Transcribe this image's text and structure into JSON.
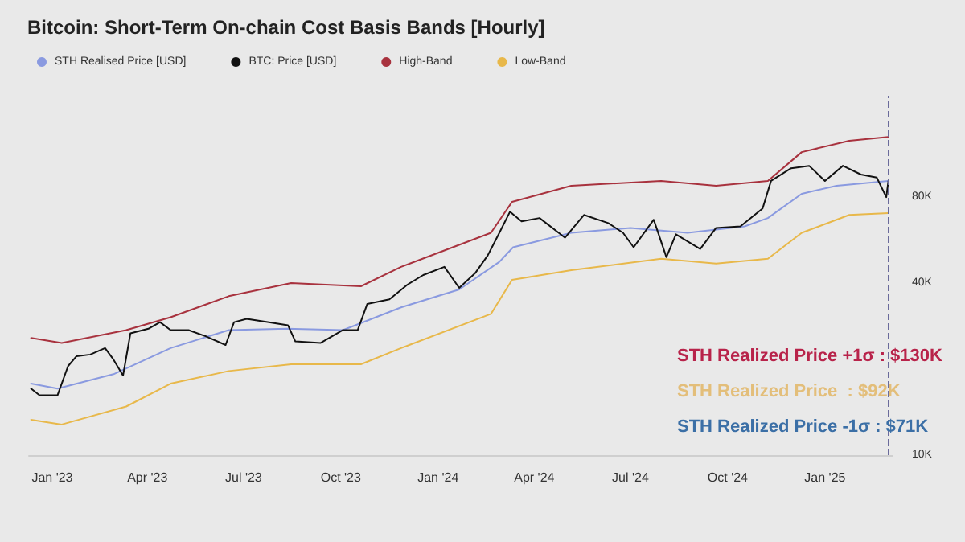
{
  "chart_data": {
    "type": "line",
    "title": "Bitcoin: Short-Term On-chain Cost Basis Bands [Hourly]",
    "series": [
      {
        "name": "STH Realised Price [USD]",
        "color": "#8a9ae0",
        "x": [
          "2022-12-12",
          "2023-01-06",
          "2023-02-28",
          "2023-04-23",
          "2023-06-17",
          "2023-08-11",
          "2023-10-03",
          "2023-11-27",
          "2024-01-21",
          "2024-02-28",
          "2024-03-12",
          "2024-05-06",
          "2024-07-01",
          "2024-08-24",
          "2024-10-17",
          "2024-11-08",
          "2024-12-10",
          "2025-01-12",
          "2025-03-02"
        ],
        "values": [
          17800,
          17100,
          19200,
          23700,
          27400,
          27700,
          27400,
          32900,
          38000,
          47500,
          53400,
          60000,
          62400,
          60000,
          63200,
          67600,
          82200,
          87700,
          91200
        ]
      },
      {
        "name": "BTC: Price [USD]",
        "color": "#111111",
        "x": [
          "2022-12-12",
          "2022-12-20",
          "2023-01-06",
          "2023-01-16",
          "2023-01-24",
          "2023-02-06",
          "2023-02-20",
          "2023-02-28",
          "2023-03-09",
          "2023-03-16",
          "2023-04-02",
          "2023-04-13",
          "2023-04-23",
          "2023-05-10",
          "2023-05-27",
          "2023-06-14",
          "2023-06-22",
          "2023-07-04",
          "2023-07-25",
          "2023-08-12",
          "2023-08-19",
          "2023-09-12",
          "2023-10-03",
          "2023-10-17",
          "2023-10-26",
          "2023-11-16",
          "2023-12-03",
          "2023-12-18",
          "2024-01-07",
          "2024-01-21",
          "2024-02-05",
          "2024-02-17",
          "2024-02-28",
          "2024-03-09",
          "2024-03-20",
          "2024-04-06",
          "2024-04-30",
          "2024-05-18",
          "2024-06-10",
          "2024-06-24",
          "2024-07-04",
          "2024-07-23",
          "2024-08-04",
          "2024-08-13",
          "2024-09-05",
          "2024-09-20",
          "2024-10-13",
          "2024-11-03",
          "2024-11-11",
          "2024-11-30",
          "2024-12-17",
          "2025-01-01",
          "2025-01-18",
          "2025-02-04",
          "2025-02-19",
          "2025-02-28",
          "2025-03-02"
        ],
        "values": [
          17100,
          16200,
          16200,
          20500,
          22200,
          22500,
          23700,
          21600,
          19000,
          26700,
          27700,
          29200,
          27400,
          27400,
          26000,
          24300,
          29200,
          30000,
          29200,
          28500,
          25000,
          24700,
          27400,
          27400,
          33800,
          35100,
          39500,
          42700,
          45600,
          38500,
          43300,
          50000,
          60000,
          71100,
          65800,
          67600,
          57700,
          69300,
          64900,
          60000,
          53400,
          66700,
          49300,
          59300,
          52700,
          62400,
          63200,
          73000,
          91200,
          101000,
          103000,
          91200,
          103000,
          96000,
          93700,
          80000,
          91200
        ]
      },
      {
        "name": "High-Band",
        "color": "#a8323e",
        "x": [
          "2022-12-12",
          "2023-01-10",
          "2023-03-12",
          "2023-04-23",
          "2023-06-17",
          "2023-08-15",
          "2023-10-20",
          "2023-11-27",
          "2024-02-20",
          "2024-03-11",
          "2024-05-06",
          "2024-07-30",
          "2024-09-20",
          "2024-11-08",
          "2024-12-10",
          "2025-01-24",
          "2025-03-02"
        ],
        "values": [
          25700,
          24700,
          27400,
          30400,
          36000,
          40000,
          39000,
          45600,
          60000,
          77000,
          87700,
          91200,
          87700,
          91200,
          115000,
          126000,
          130000
        ]
      },
      {
        "name": "Low-Band",
        "color": "#e8b84a",
        "x": [
          "2022-12-12",
          "2023-01-10",
          "2023-03-12",
          "2023-04-23",
          "2023-06-17",
          "2023-08-15",
          "2023-10-20",
          "2023-11-27",
          "2024-02-20",
          "2024-03-11",
          "2024-05-06",
          "2024-07-30",
          "2024-09-20",
          "2024-11-08",
          "2024-12-10",
          "2025-01-24",
          "2025-03-02"
        ],
        "values": [
          13300,
          12800,
          14800,
          17800,
          19700,
          20800,
          20800,
          23700,
          31200,
          41100,
          44400,
          48700,
          46800,
          48700,
          60000,
          69300,
          70300
        ]
      }
    ],
    "xlim": [
      "2022-12-10",
      "2025-03-06"
    ],
    "xticks": [
      {
        "value": "2023-01-01",
        "label": "Jan '23"
      },
      {
        "value": "2023-04-01",
        "label": "Apr '23"
      },
      {
        "value": "2023-07-01",
        "label": "Jul '23"
      },
      {
        "value": "2023-10-01",
        "label": "Oct '23"
      },
      {
        "value": "2024-01-01",
        "label": "Jan '24"
      },
      {
        "value": "2024-04-01",
        "label": "Apr '24"
      },
      {
        "value": "2024-07-01",
        "label": "Jul '24"
      },
      {
        "value": "2024-10-01",
        "label": "Oct '24"
      },
      {
        "value": "2025-01-01",
        "label": "Jan '25"
      }
    ],
    "ylim": [
      10000,
      180000
    ],
    "yticks": [
      {
        "value": 10000,
        "label": "10K"
      },
      {
        "value": 40000,
        "label": "40K"
      },
      {
        "value": 80000,
        "label": "80K"
      }
    ],
    "log": true,
    "legend": "top left",
    "marker": "none",
    "ref_lines": [
      {
        "axis": "x",
        "value": "2025-03-02",
        "label": null,
        "color": "#6a6a9a",
        "line_style": "dashed"
      }
    ],
    "annotations": [
      "STH Realized Price +1σ : $130K",
      "STH Realized Price  : $92K",
      "STH Realized Price -1σ : $71K"
    ]
  }
}
